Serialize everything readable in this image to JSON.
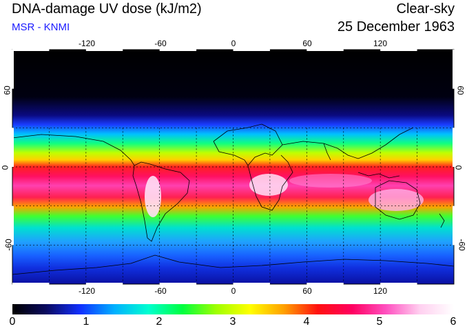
{
  "header": {
    "title": "DNA-damage UV dose (kJ/m2)",
    "source": "MSR - KNMI",
    "condition": "Clear-sky",
    "date": "25 December 1963"
  },
  "axes": {
    "lon_ticks": [
      "-120",
      "-60",
      "0",
      "60",
      "120"
    ],
    "lat_ticks": [
      "60",
      "0",
      "-60"
    ]
  },
  "colorbar": {
    "labels": [
      "0",
      "1",
      "2",
      "3",
      "4",
      "5",
      "6"
    ],
    "min": 0,
    "max": 6,
    "stops": [
      "#000000",
      "#0a0a60",
      "#1030ff",
      "#00b0ff",
      "#00ffd0",
      "#00ff40",
      "#a0ff00",
      "#ffff00",
      "#ffa000",
      "#ff1010",
      "#ff0060",
      "#ff50c0",
      "#ffd0f0",
      "#ffffff"
    ]
  },
  "colors": {
    "title_blue": "#1a1aff",
    "coastline": "#000000",
    "grid": "#000000"
  }
}
